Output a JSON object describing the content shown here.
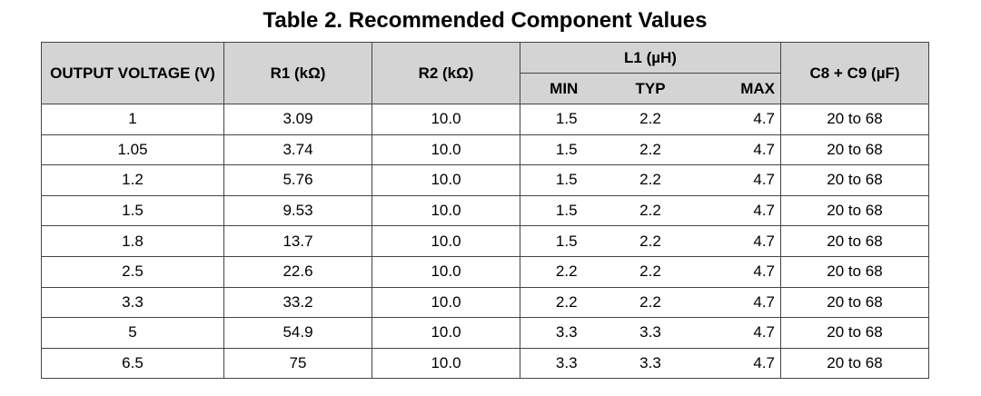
{
  "title": "Table 2. Recommended Component Values",
  "headers": {
    "output_voltage": "OUTPUT VOLTAGE (V)",
    "r1": "R1 (kΩ)",
    "r2": "R2 (kΩ)",
    "l1": "L1 (µH)",
    "l1_min": "MIN",
    "l1_typ": "TYP",
    "l1_max": "MAX",
    "c8c9": "C8 + C9 (µF)"
  },
  "rows": [
    {
      "vout": "1",
      "r1": "3.09",
      "r2": "10.0",
      "min": "1.5",
      "typ": "2.2",
      "max": "4.7",
      "c": "20 to 68"
    },
    {
      "vout": "1.05",
      "r1": "3.74",
      "r2": "10.0",
      "min": "1.5",
      "typ": "2.2",
      "max": "4.7",
      "c": "20 to 68"
    },
    {
      "vout": "1.2",
      "r1": "5.76",
      "r2": "10.0",
      "min": "1.5",
      "typ": "2.2",
      "max": "4.7",
      "c": "20 to 68"
    },
    {
      "vout": "1.5",
      "r1": "9.53",
      "r2": "10.0",
      "min": "1.5",
      "typ": "2.2",
      "max": "4.7",
      "c": "20 to 68"
    },
    {
      "vout": "1.8",
      "r1": "13.7",
      "r2": "10.0",
      "min": "1.5",
      "typ": "2.2",
      "max": "4.7",
      "c": "20 to 68"
    },
    {
      "vout": "2.5",
      "r1": "22.6",
      "r2": "10.0",
      "min": "2.2",
      "typ": "2.2",
      "max": "4.7",
      "c": "20 to 68"
    },
    {
      "vout": "3.3",
      "r1": "33.2",
      "r2": "10.0",
      "min": "2.2",
      "typ": "2.2",
      "max": "4.7",
      "c": "20 to 68"
    },
    {
      "vout": "5",
      "r1": "54.9",
      "r2": "10.0",
      "min": "3.3",
      "typ": "3.3",
      "max": "4.7",
      "c": "20 to 68"
    },
    {
      "vout": "6.5",
      "r1": "75",
      "r2": "10.0",
      "min": "3.3",
      "typ": "3.3",
      "max": "4.7",
      "c": "20 to 68"
    }
  ]
}
